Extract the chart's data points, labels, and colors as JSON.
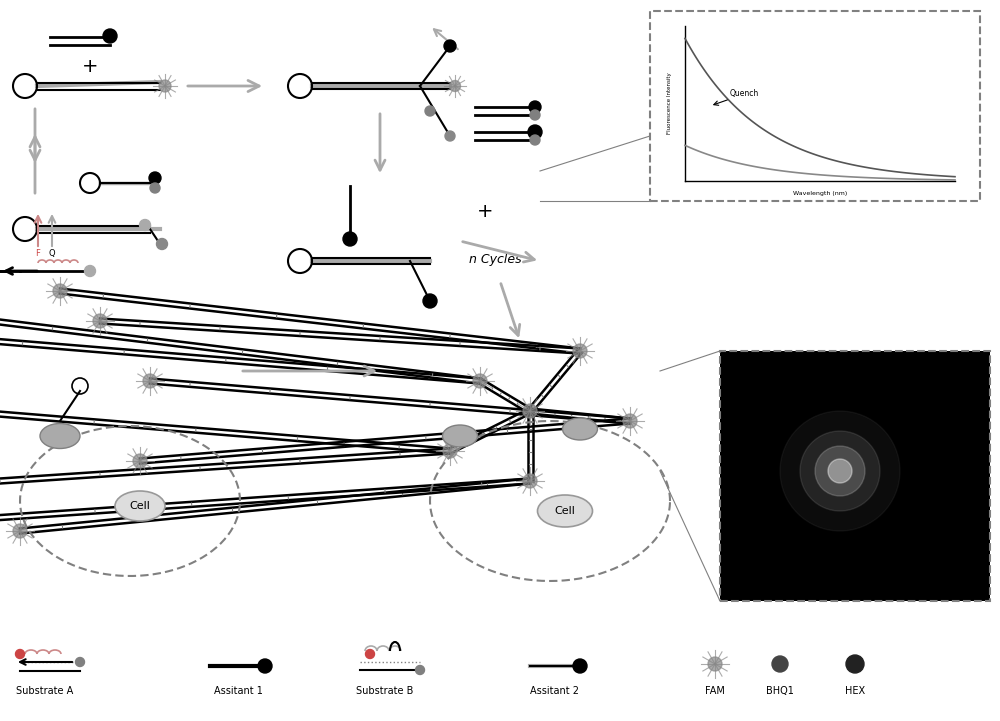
{
  "bg_color": "#ffffff",
  "title": "",
  "fig_width": 10.0,
  "fig_height": 7.21,
  "legend_labels": [
    "Substrate A",
    "Assitant 1",
    "Substrate B",
    "Assitant 2",
    "FAM",
    "BHQ1",
    "HEX"
  ],
  "n_cycles_text": "n Cycles",
  "cell_text": "Cell",
  "quench_text": "Quench",
  "wavelength_label": "Wavelength (nm)",
  "fluorescence_label": "Fluorescence Intensity"
}
